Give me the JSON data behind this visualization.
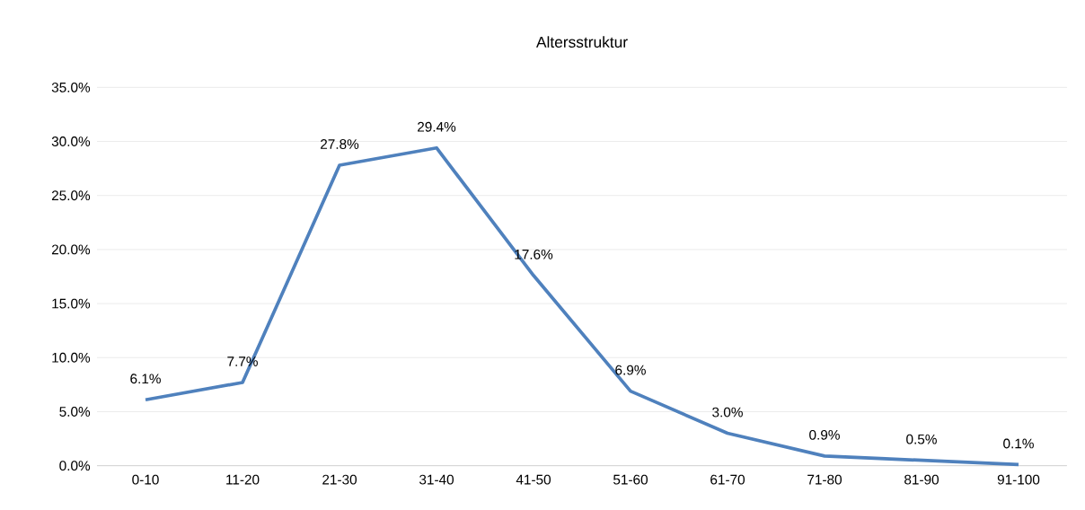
{
  "chart_data": {
    "type": "line",
    "title": "Altersstruktur",
    "categories": [
      "0-10",
      "11-20",
      "21-30",
      "31-40",
      "41-50",
      "51-60",
      "61-70",
      "71-80",
      "81-90",
      "91-100"
    ],
    "values": [
      6.1,
      7.7,
      27.8,
      29.4,
      17.6,
      6.9,
      3.0,
      0.9,
      0.5,
      0.1
    ],
    "value_labels": [
      "6.1%",
      "7.7%",
      "27.8%",
      "29.4%",
      "17.6%",
      "6.9%",
      "3.0%",
      "0.9%",
      "0.5%",
      "0.1%"
    ],
    "color": "#4f81bd",
    "ylim": [
      0,
      35
    ],
    "yticks": [
      {
        "value": 0,
        "label": "0.0%"
      },
      {
        "value": 5,
        "label": "5.0%"
      },
      {
        "value": 10,
        "label": "10.0%"
      },
      {
        "value": 15,
        "label": "15.0%"
      },
      {
        "value": 20,
        "label": "20.0%"
      },
      {
        "value": 25,
        "label": "25.0%"
      },
      {
        "value": 30,
        "label": "30.0%"
      },
      {
        "value": 35,
        "label": "35.0%"
      }
    ],
    "grid": "y",
    "marker": "none",
    "line_style": "solid"
  }
}
